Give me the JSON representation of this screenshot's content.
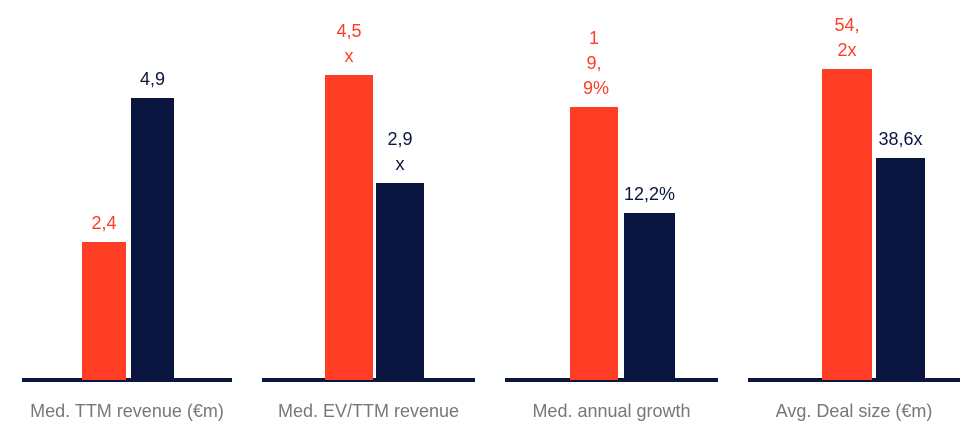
{
  "chart_data": [
    {
      "type": "bar",
      "xlabel": "Med. TTM revenue (€m)",
      "values": [
        2.4,
        4.9
      ],
      "value_labels": [
        "2,4",
        "4,9"
      ],
      "colors": [
        "#ff3d24",
        "#0a1540"
      ],
      "ylim": [
        0,
        6.6
      ]
    },
    {
      "type": "bar",
      "xlabel": "Med. EV/TTM revenue",
      "values": [
        4.5,
        2.9
      ],
      "value_labels": [
        "4,5x",
        "2,9x"
      ],
      "colors": [
        "#ff3d24",
        "#0a1540"
      ],
      "ylim": [
        0,
        5.6
      ]
    },
    {
      "type": "bar",
      "xlabel": "Med. annual growth",
      "values": [
        19.9,
        12.2
      ],
      "value_labels": [
        "19,9%",
        "12,2%"
      ],
      "colors": [
        "#ff3d24",
        "#0a1540"
      ],
      "ylim": [
        0,
        27.7
      ]
    },
    {
      "type": "bar",
      "xlabel": "Avg. Deal size (€m)",
      "values": [
        54.2,
        38.6
      ],
      "value_labels": [
        "54,2x",
        "38,6x"
      ],
      "colors": [
        "#ff3d24",
        "#0a1540"
      ],
      "ylim": [
        0,
        66.2
      ]
    }
  ]
}
